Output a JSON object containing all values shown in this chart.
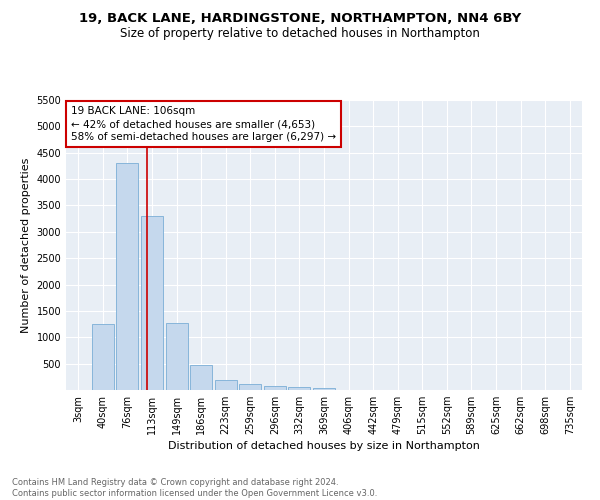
{
  "title": "19, BACK LANE, HARDINGSTONE, NORTHAMPTON, NN4 6BY",
  "subtitle": "Size of property relative to detached houses in Northampton",
  "xlabel": "Distribution of detached houses by size in Northampton",
  "ylabel": "Number of detached properties",
  "bar_labels": [
    "3sqm",
    "40sqm",
    "76sqm",
    "113sqm",
    "149sqm",
    "186sqm",
    "223sqm",
    "259sqm",
    "296sqm",
    "332sqm",
    "369sqm",
    "406sqm",
    "442sqm",
    "479sqm",
    "515sqm",
    "552sqm",
    "589sqm",
    "625sqm",
    "662sqm",
    "698sqm",
    "735sqm"
  ],
  "bar_values": [
    0,
    1255,
    4305,
    3295,
    1275,
    480,
    195,
    105,
    75,
    50,
    45,
    0,
    0,
    0,
    0,
    0,
    0,
    0,
    0,
    0,
    0
  ],
  "bar_color": "#c5d8ed",
  "bar_edge_color": "#7aaed6",
  "vline_x_index": 2.78,
  "vline_color": "#cc0000",
  "annotation_text": "19 BACK LANE: 106sqm\n← 42% of detached houses are smaller (4,653)\n58% of semi-detached houses are larger (6,297) →",
  "annotation_box_color": "#ffffff",
  "annotation_box_edge": "#cc0000",
  "ylim": [
    0,
    5500
  ],
  "yticks": [
    0,
    500,
    1000,
    1500,
    2000,
    2500,
    3000,
    3500,
    4000,
    4500,
    5000,
    5500
  ],
  "background_color": "#e8eef5",
  "footnote": "Contains HM Land Registry data © Crown copyright and database right 2024.\nContains public sector information licensed under the Open Government Licence v3.0.",
  "title_fontsize": 9.5,
  "subtitle_fontsize": 8.5,
  "xlabel_fontsize": 8,
  "ylabel_fontsize": 8,
  "tick_fontsize": 7,
  "annotation_fontsize": 7.5,
  "footnote_fontsize": 6,
  "footnote_color": "#666666"
}
